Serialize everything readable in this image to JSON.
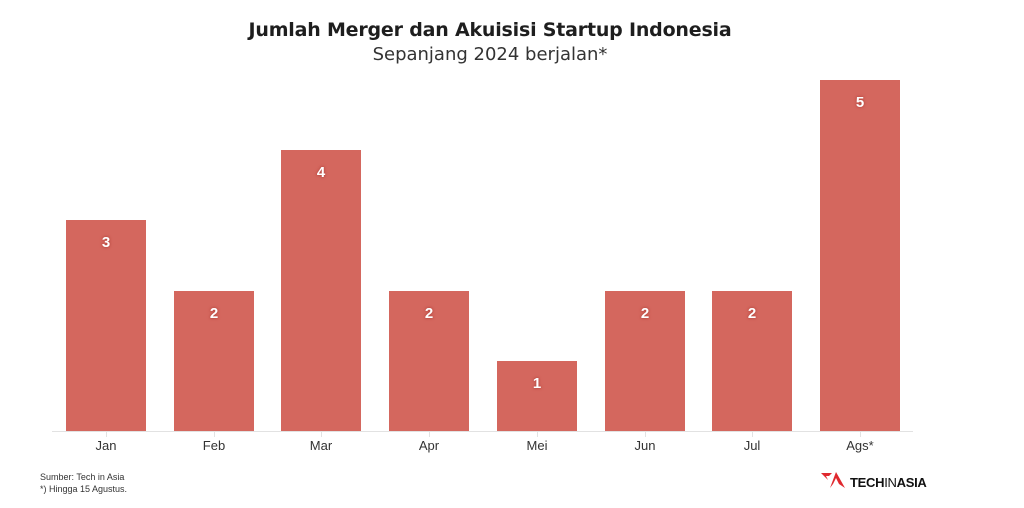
{
  "chart_data": {
    "type": "bar",
    "title": "Jumlah Merger dan Akuisisi Startup Indonesia",
    "subtitle": "Sepanjang 2024 berjalan*",
    "categories": [
      "Jan",
      "Feb",
      "Mar",
      "Apr",
      "Mei",
      "Jun",
      "Jul",
      "Ags*"
    ],
    "values": [
      3,
      2,
      4,
      2,
      1,
      2,
      2,
      5
    ],
    "xlabel": "",
    "ylabel": "",
    "ylim": [
      0,
      5
    ],
    "grid": false,
    "data_labels": true,
    "bar_color": "#D4675E"
  },
  "footer": {
    "source": "Sumber: Tech in Asia",
    "note": "*) Hingga 15 Agustus."
  },
  "logo": {
    "brand_left": "TECH",
    "brand_mid": "IN",
    "brand_right": "ASIA",
    "icon": "techinasia-logo-icon",
    "accent_color": "#E0282E"
  }
}
